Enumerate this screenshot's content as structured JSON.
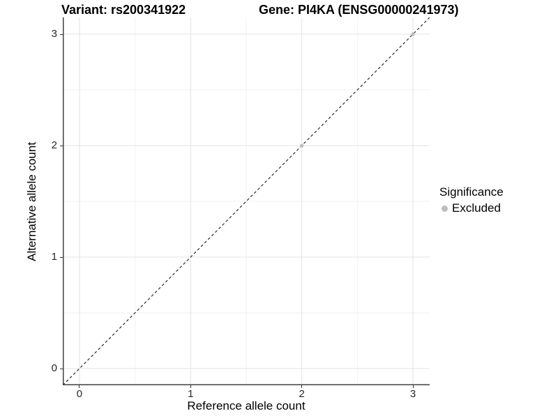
{
  "figure": {
    "title_left": "Variant: rs200341922",
    "title_right": "Gene: PI4KA (ENSG00000241973)"
  },
  "axes": {
    "x_label": "Reference allele count",
    "y_label": "Alternative allele count"
  },
  "legend": {
    "title": "Significance",
    "items": [
      {
        "label": "Excluded",
        "color": "#bdbdbd"
      }
    ]
  },
  "chart_data": {
    "type": "scatter",
    "title_left": "Variant: rs200341922",
    "title_right": "Gene: PI4KA (ENSG00000241973)",
    "xlabel": "Reference allele count",
    "ylabel": "Alternative allele count",
    "xlim": [
      -0.15,
      3.15
    ],
    "ylim": [
      -0.15,
      3.15
    ],
    "x_ticks": [
      0,
      1,
      2,
      3
    ],
    "y_ticks": [
      0,
      1,
      2,
      3
    ],
    "x_minor_ticks": [
      0.5,
      1.5,
      2.5
    ],
    "y_minor_ticks": [
      0.5,
      1.5,
      2.5
    ],
    "grid": "major+minor",
    "legend_title": "Significance",
    "legend_position": "right",
    "series": [
      {
        "name": "Excluded",
        "color": "#bdbdbd",
        "points": [
          {
            "x": 2,
            "y": 2
          },
          {
            "x": 3,
            "y": 3
          }
        ]
      }
    ],
    "reference_line": {
      "kind": "identity",
      "style": "dashed",
      "color": "#1a1a1a",
      "x1": -0.15,
      "y1": -0.15,
      "x2": 3.15,
      "y2": 3.15
    },
    "colors": {
      "grid_major": "#e3e3e3",
      "grid_minor": "#f1f1f1",
      "axis_line": "#404040",
      "tick_mark": "#333333"
    }
  }
}
